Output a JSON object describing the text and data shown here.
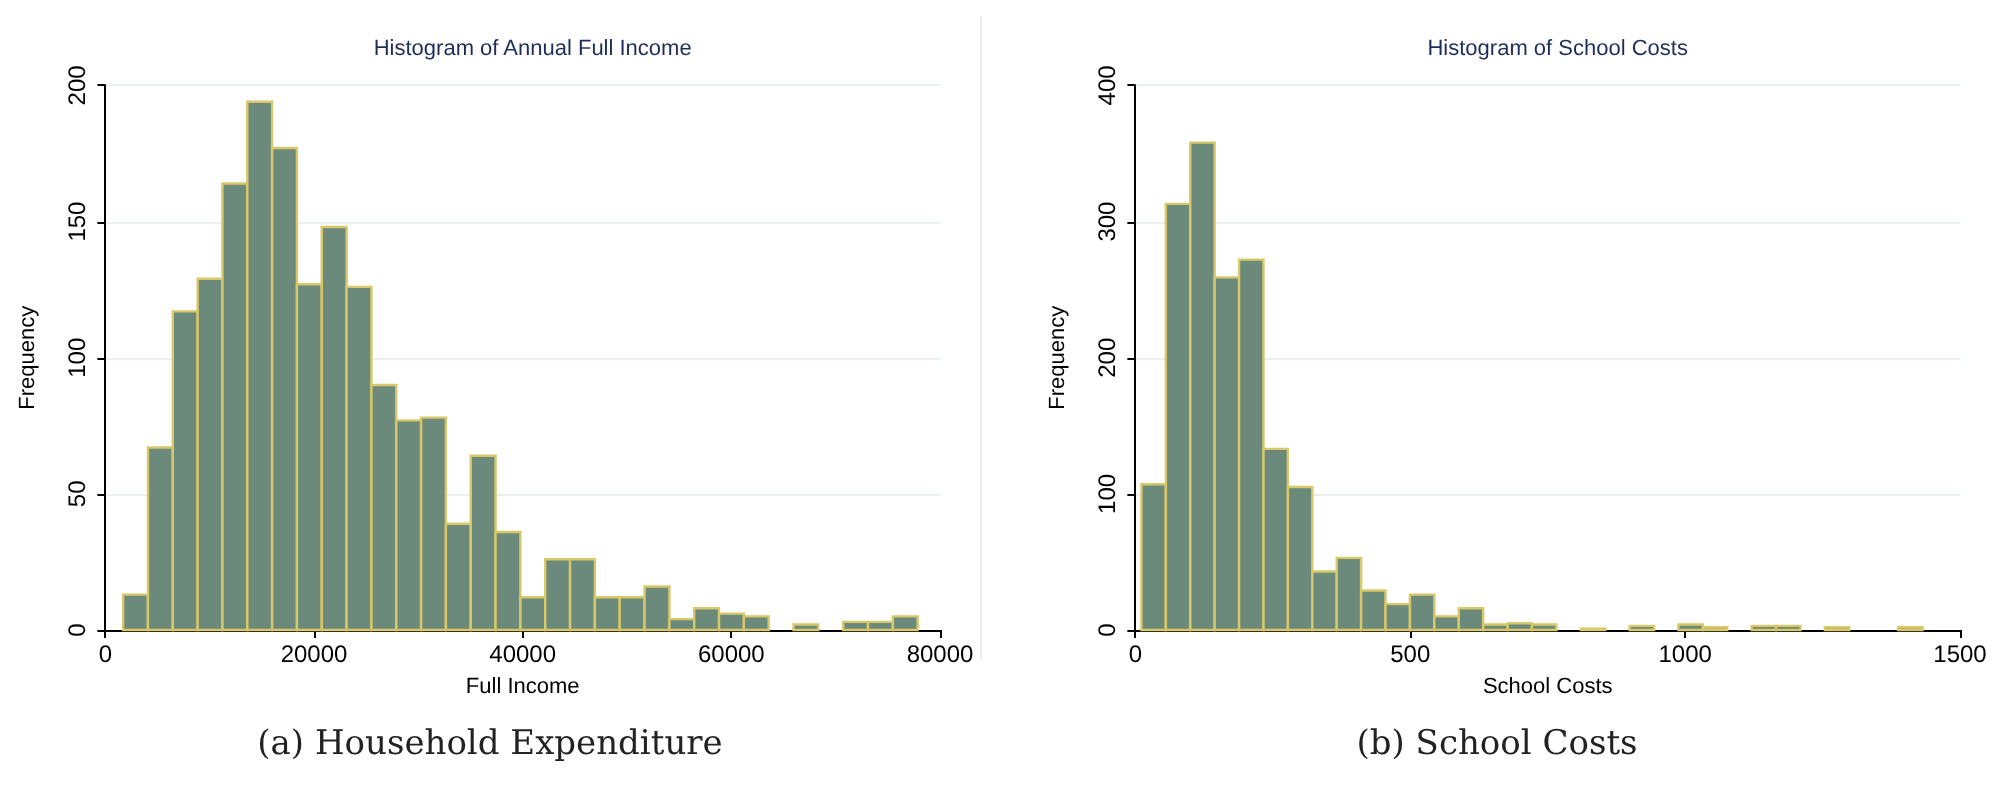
{
  "chart_data": [
    {
      "type": "histogram",
      "title": "Histogram of Annual Full Income",
      "xlabel": "Full Income",
      "ylabel": "Frequency",
      "color": "#6b8a7c",
      "bins": [
        1700,
        4080,
        6460,
        8840,
        11220,
        13600,
        15980,
        18360,
        20740,
        23120,
        25500,
        27880,
        30260,
        32640,
        35020,
        37400,
        39780,
        42160,
        44540,
        46920,
        49300,
        51680,
        54060,
        56440,
        58820,
        61200,
        63580,
        65960,
        68340,
        70720,
        73100,
        75480,
        77860
      ],
      "values": [
        13,
        67,
        117,
        129,
        164,
        194,
        177,
        127,
        148,
        126,
        90,
        77,
        78,
        39,
        64,
        36,
        12,
        26,
        26,
        12,
        12,
        16,
        4,
        8,
        6,
        5,
        0,
        2,
        0,
        3,
        3,
        5
      ],
      "xlim": [
        0,
        80000
      ],
      "xticks": [
        0,
        20000,
        40000,
        60000,
        80000
      ],
      "ylim": [
        0,
        200
      ],
      "yticks": [
        0,
        50,
        100,
        150,
        200
      ],
      "grid": "y",
      "annotations": [
        "(a)  Household Expenditure"
      ]
    },
    {
      "type": "histogram",
      "title": "Histogram of School Costs",
      "xlabel": "School Costs",
      "ylabel": "Frequency",
      "color": "#6b8a7c",
      "bins": [
        11,
        55.4,
        99.8,
        144.2,
        188.6,
        233,
        277.4,
        321.8,
        366.2,
        410.6,
        455,
        499.4,
        543.8,
        588.2,
        632.6,
        677,
        721.4,
        765.8,
        810.2,
        854.6,
        899,
        943.4,
        987.8,
        1032.2,
        1076.6,
        1121,
        1165.4,
        1209.8,
        1254.2,
        1298.6,
        1343,
        1387.4,
        1431.8
      ],
      "values": [
        107,
        313,
        358,
        259,
        272,
        133,
        105,
        43,
        53,
        29,
        19,
        26,
        10,
        16,
        4,
        5,
        4,
        0,
        1,
        0,
        3,
        0,
        4,
        2,
        0,
        3,
        3,
        0,
        2,
        0,
        0,
        2
      ],
      "xlim": [
        0,
        1500
      ],
      "xticks": [
        0,
        500,
        1000,
        1500
      ],
      "ylim": [
        0,
        400
      ],
      "yticks": [
        0,
        100,
        200,
        300,
        400
      ],
      "grid": "y",
      "annotations": [
        "(b)  School Costs"
      ]
    }
  ]
}
